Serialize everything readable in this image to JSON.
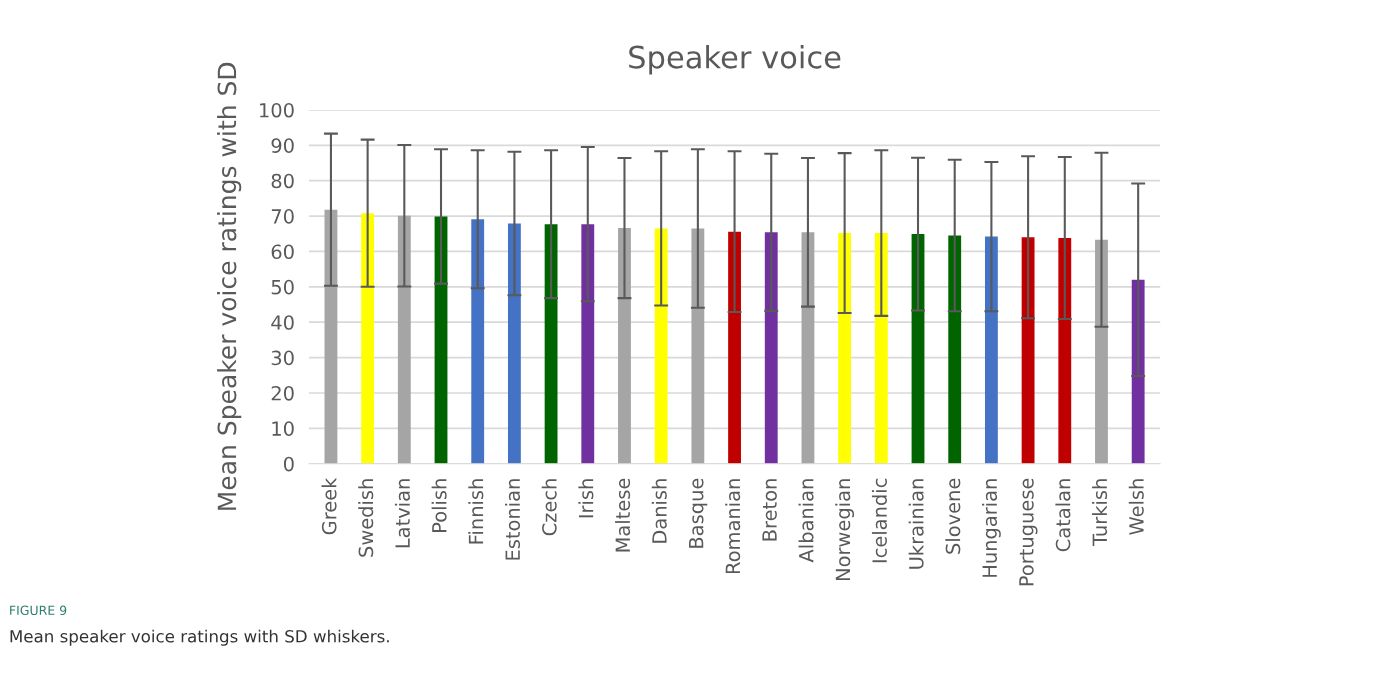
{
  "chart_data": {
    "type": "bar",
    "title": "Speaker voice",
    "ylabel": "Mean Speaker voice ratings with SD",
    "categories": [
      "Greek",
      "Swedish",
      "Latvian",
      "Polish",
      "Finnish",
      "Estonian",
      "Czech",
      "Irish",
      "Maltese",
      "Danish",
      "Basque",
      "Romanian",
      "Breton",
      "Albanian",
      "Norwegian",
      "Icelandic",
      "Ukrainian",
      "Slovene",
      "Hungarian",
      "Portuguese",
      "Catalan",
      "Turkish",
      "Welsh"
    ],
    "values": [
      71.8,
      70.8,
      70.1,
      69.9,
      69.1,
      67.9,
      67.7,
      67.7,
      66.6,
      66.5,
      66.5,
      65.6,
      65.4,
      65.4,
      65.2,
      65.2,
      64.9,
      64.5,
      64.2,
      64.0,
      63.8,
      63.3,
      52.0
    ],
    "errors": [
      21.5,
      20.8,
      20.0,
      19.0,
      19.5,
      20.3,
      20.9,
      21.8,
      19.8,
      21.8,
      22.4,
      22.7,
      22.2,
      21.0,
      22.6,
      23.4,
      21.6,
      21.4,
      21.1,
      22.9,
      22.9,
      24.6,
      27.2
    ],
    "colors": [
      "#a5a5a5",
      "#ffff00",
      "#a5a5a5",
      "#006400",
      "#4472c4",
      "#4472c4",
      "#006400",
      "#7030a0",
      "#a5a5a5",
      "#ffff00",
      "#a5a5a5",
      "#c00000",
      "#7030a0",
      "#a5a5a5",
      "#ffff00",
      "#ffff00",
      "#006400",
      "#006400",
      "#4472c4",
      "#c00000",
      "#c00000",
      "#a5a5a5",
      "#7030a0"
    ],
    "ylim": [
      0,
      100
    ],
    "yticks": [
      0,
      10,
      20,
      30,
      40,
      50,
      60,
      70,
      80,
      90,
      100
    ],
    "grid": "y",
    "legend": false,
    "annotations": [
      "FIGURE 9",
      "Mean speaker voice ratings with SD whiskers."
    ]
  }
}
